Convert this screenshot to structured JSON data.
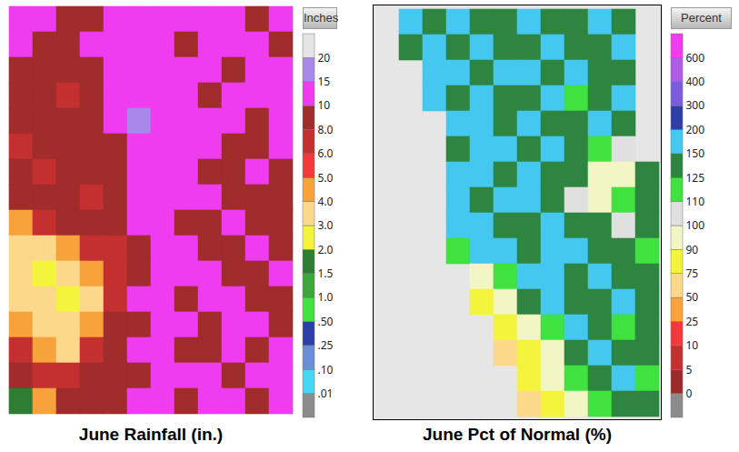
{
  "chart_data": [
    {
      "type": "heatmap",
      "title": "June Rainfall (in.)",
      "tick_labels": false,
      "cells": [
        [
          12,
          12,
          9,
          9,
          12,
          12,
          12,
          12,
          12,
          12,
          9,
          12
        ],
        [
          12,
          9,
          9,
          12,
          12,
          12,
          12,
          9,
          12,
          12,
          12,
          9
        ],
        [
          9,
          9,
          9,
          9,
          12,
          12,
          12,
          12,
          12,
          9,
          12,
          12
        ],
        [
          9,
          9,
          7,
          9,
          12,
          12,
          12,
          12,
          9,
          12,
          12,
          12
        ],
        [
          9,
          9,
          9,
          9,
          12,
          16,
          12,
          12,
          12,
          12,
          9,
          12
        ],
        [
          7,
          9,
          9,
          9,
          9,
          12,
          12,
          12,
          12,
          9,
          9,
          12
        ],
        [
          9,
          7,
          9,
          9,
          9,
          12,
          12,
          12,
          9,
          9,
          12,
          9
        ],
        [
          9,
          9,
          9,
          7,
          9,
          12,
          12,
          12,
          12,
          9,
          9,
          9
        ],
        [
          4.5,
          7,
          9,
          9,
          9,
          12,
          12,
          9,
          9,
          12,
          9,
          9
        ],
        [
          3.5,
          3.5,
          4.5,
          7,
          7,
          9,
          12,
          12,
          9,
          9,
          12,
          9
        ],
        [
          3.5,
          2.5,
          3.5,
          4.5,
          7,
          9,
          12,
          12,
          12,
          9,
          9,
          12
        ],
        [
          3.5,
          3.5,
          2.5,
          3.5,
          7,
          12,
          12,
          9,
          12,
          12,
          9,
          9
        ],
        [
          4.5,
          3.5,
          3.5,
          4.5,
          9,
          9,
          12,
          12,
          9,
          12,
          12,
          9
        ],
        [
          7,
          4.5,
          3.5,
          7,
          9,
          12,
          12,
          9,
          9,
          12,
          9,
          12
        ],
        [
          9,
          7,
          7,
          9,
          9,
          9,
          12,
          12,
          12,
          9,
          12,
          12
        ],
        [
          1.7,
          4.5,
          9,
          9,
          9,
          12,
          12,
          9,
          12,
          12,
          9,
          12
        ]
      ],
      "colorbar": {
        "title": "Inches",
        "ticks": [
          {
            "value": 0.01,
            "label": ".01"
          },
          {
            "value": 0.1,
            "label": ".10"
          },
          {
            "value": 0.25,
            "label": ".25"
          },
          {
            "value": 0.5,
            "label": ".50"
          },
          {
            "value": 1,
            "label": "1.0"
          },
          1.5,
          {
            "value": 2,
            "label": "2.0"
          },
          {
            "value": 3,
            "label": "3.0"
          },
          {
            "value": 4,
            "label": "4.0"
          },
          {
            "value": 5,
            "label": "5.0"
          },
          {
            "value": 6,
            "label": "6.0"
          },
          {
            "value": 8,
            "label": "8.0"
          },
          10,
          15,
          20
        ],
        "colors": [
          "#8c8c8c",
          "#44d8f4",
          "#6a8fd8",
          "#2c3ea8",
          "#3fe23f",
          "#3ca83c",
          "#2e7d32",
          "#f4f43c",
          "#fcd98a",
          "#f7a23a",
          "#f23a3a",
          "#c43030",
          "#a02c2c",
          "#f03cf0",
          "#a888e8",
          "#e4e4e4"
        ]
      }
    },
    {
      "type": "heatmap",
      "title": "June Pct of Normal (%)",
      "tick_labels": false,
      "cells": [
        [
          null,
          175,
          135,
          175,
          135,
          135,
          175,
          135,
          135,
          175,
          135,
          null
        ],
        [
          null,
          135,
          175,
          135,
          175,
          135,
          135,
          175,
          135,
          135,
          175,
          null
        ],
        [
          null,
          null,
          175,
          175,
          135,
          175,
          175,
          135,
          175,
          135,
          135,
          null
        ],
        [
          null,
          null,
          175,
          135,
          175,
          135,
          135,
          175,
          115,
          135,
          175,
          null
        ],
        [
          null,
          null,
          null,
          175,
          175,
          135,
          175,
          135,
          135,
          175,
          135,
          null
        ],
        [
          null,
          null,
          null,
          135,
          175,
          175,
          135,
          175,
          135,
          115,
          105,
          null
        ],
        [
          null,
          null,
          null,
          175,
          175,
          135,
          175,
          135,
          135,
          95,
          95,
          135
        ],
        [
          null,
          null,
          null,
          175,
          135,
          175,
          175,
          135,
          105,
          95,
          115,
          135
        ],
        [
          null,
          null,
          null,
          175,
          175,
          135,
          135,
          175,
          135,
          135,
          105,
          135
        ],
        [
          null,
          null,
          null,
          115,
          175,
          175,
          135,
          175,
          175,
          135,
          135,
          115
        ],
        [
          null,
          null,
          null,
          null,
          95,
          115,
          175,
          175,
          135,
          175,
          135,
          135
        ],
        [
          null,
          null,
          null,
          null,
          80,
          95,
          135,
          175,
          135,
          135,
          175,
          135
        ],
        [
          null,
          null,
          null,
          null,
          null,
          80,
          95,
          115,
          175,
          135,
          115,
          135
        ],
        [
          null,
          null,
          null,
          null,
          null,
          60,
          80,
          95,
          135,
          175,
          135,
          135
        ],
        [
          null,
          null,
          null,
          null,
          null,
          null,
          80,
          95,
          115,
          135,
          175,
          115
        ],
        [
          null,
          null,
          null,
          null,
          null,
          null,
          60,
          80,
          95,
          115,
          135,
          135
        ]
      ],
      "colorbar": {
        "title": "Percent",
        "ticks": [
          0,
          5,
          10,
          25,
          50,
          75,
          90,
          100,
          110,
          125,
          150,
          200,
          300,
          400,
          600
        ],
        "colors": [
          "#8c8c8c",
          "#9c2a2a",
          "#c43030",
          "#f23a3a",
          "#f7a23a",
          "#fcd98a",
          "#f4f43c",
          "#f2f5c4",
          "#e0e0e0",
          "#3fe23f",
          "#2e8540",
          "#44c8f0",
          "#2c3ea8",
          "#7a5ce0",
          "#b05ce8",
          "#f03cf0"
        ]
      }
    }
  ]
}
